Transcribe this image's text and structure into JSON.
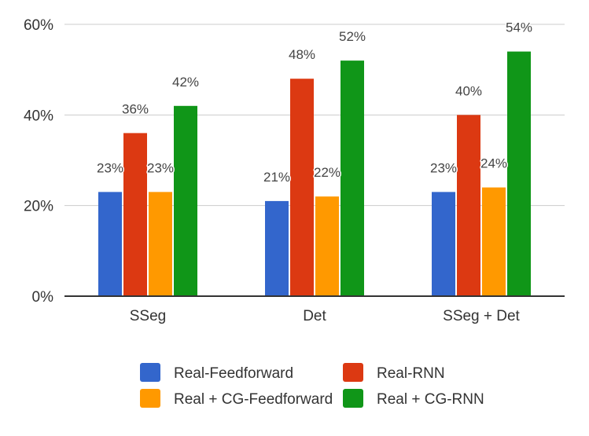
{
  "chart_data": {
    "type": "bar",
    "categories": [
      "SSeg",
      "Det",
      "SSeg + Det"
    ],
    "series": [
      {
        "name": "Real-Feedforward",
        "color": "#3366cc",
        "values": [
          23,
          21,
          23
        ]
      },
      {
        "name": "Real-RNN",
        "color": "#dc3912",
        "values": [
          36,
          48,
          40
        ]
      },
      {
        "name": "Real + CG-Feedforward",
        "color": "#ff9900",
        "values": [
          23,
          22,
          24
        ]
      },
      {
        "name": "Real + CG-RNN",
        "color": "#109618",
        "values": [
          42,
          52,
          54
        ]
      }
    ],
    "value_suffix": "%",
    "ylim": [
      0,
      60
    ],
    "yticks": [
      "0%",
      "20%",
      "40%",
      "60%"
    ],
    "title": "",
    "xlabel": "",
    "ylabel": "",
    "grid": true,
    "legend_position": "bottom"
  }
}
